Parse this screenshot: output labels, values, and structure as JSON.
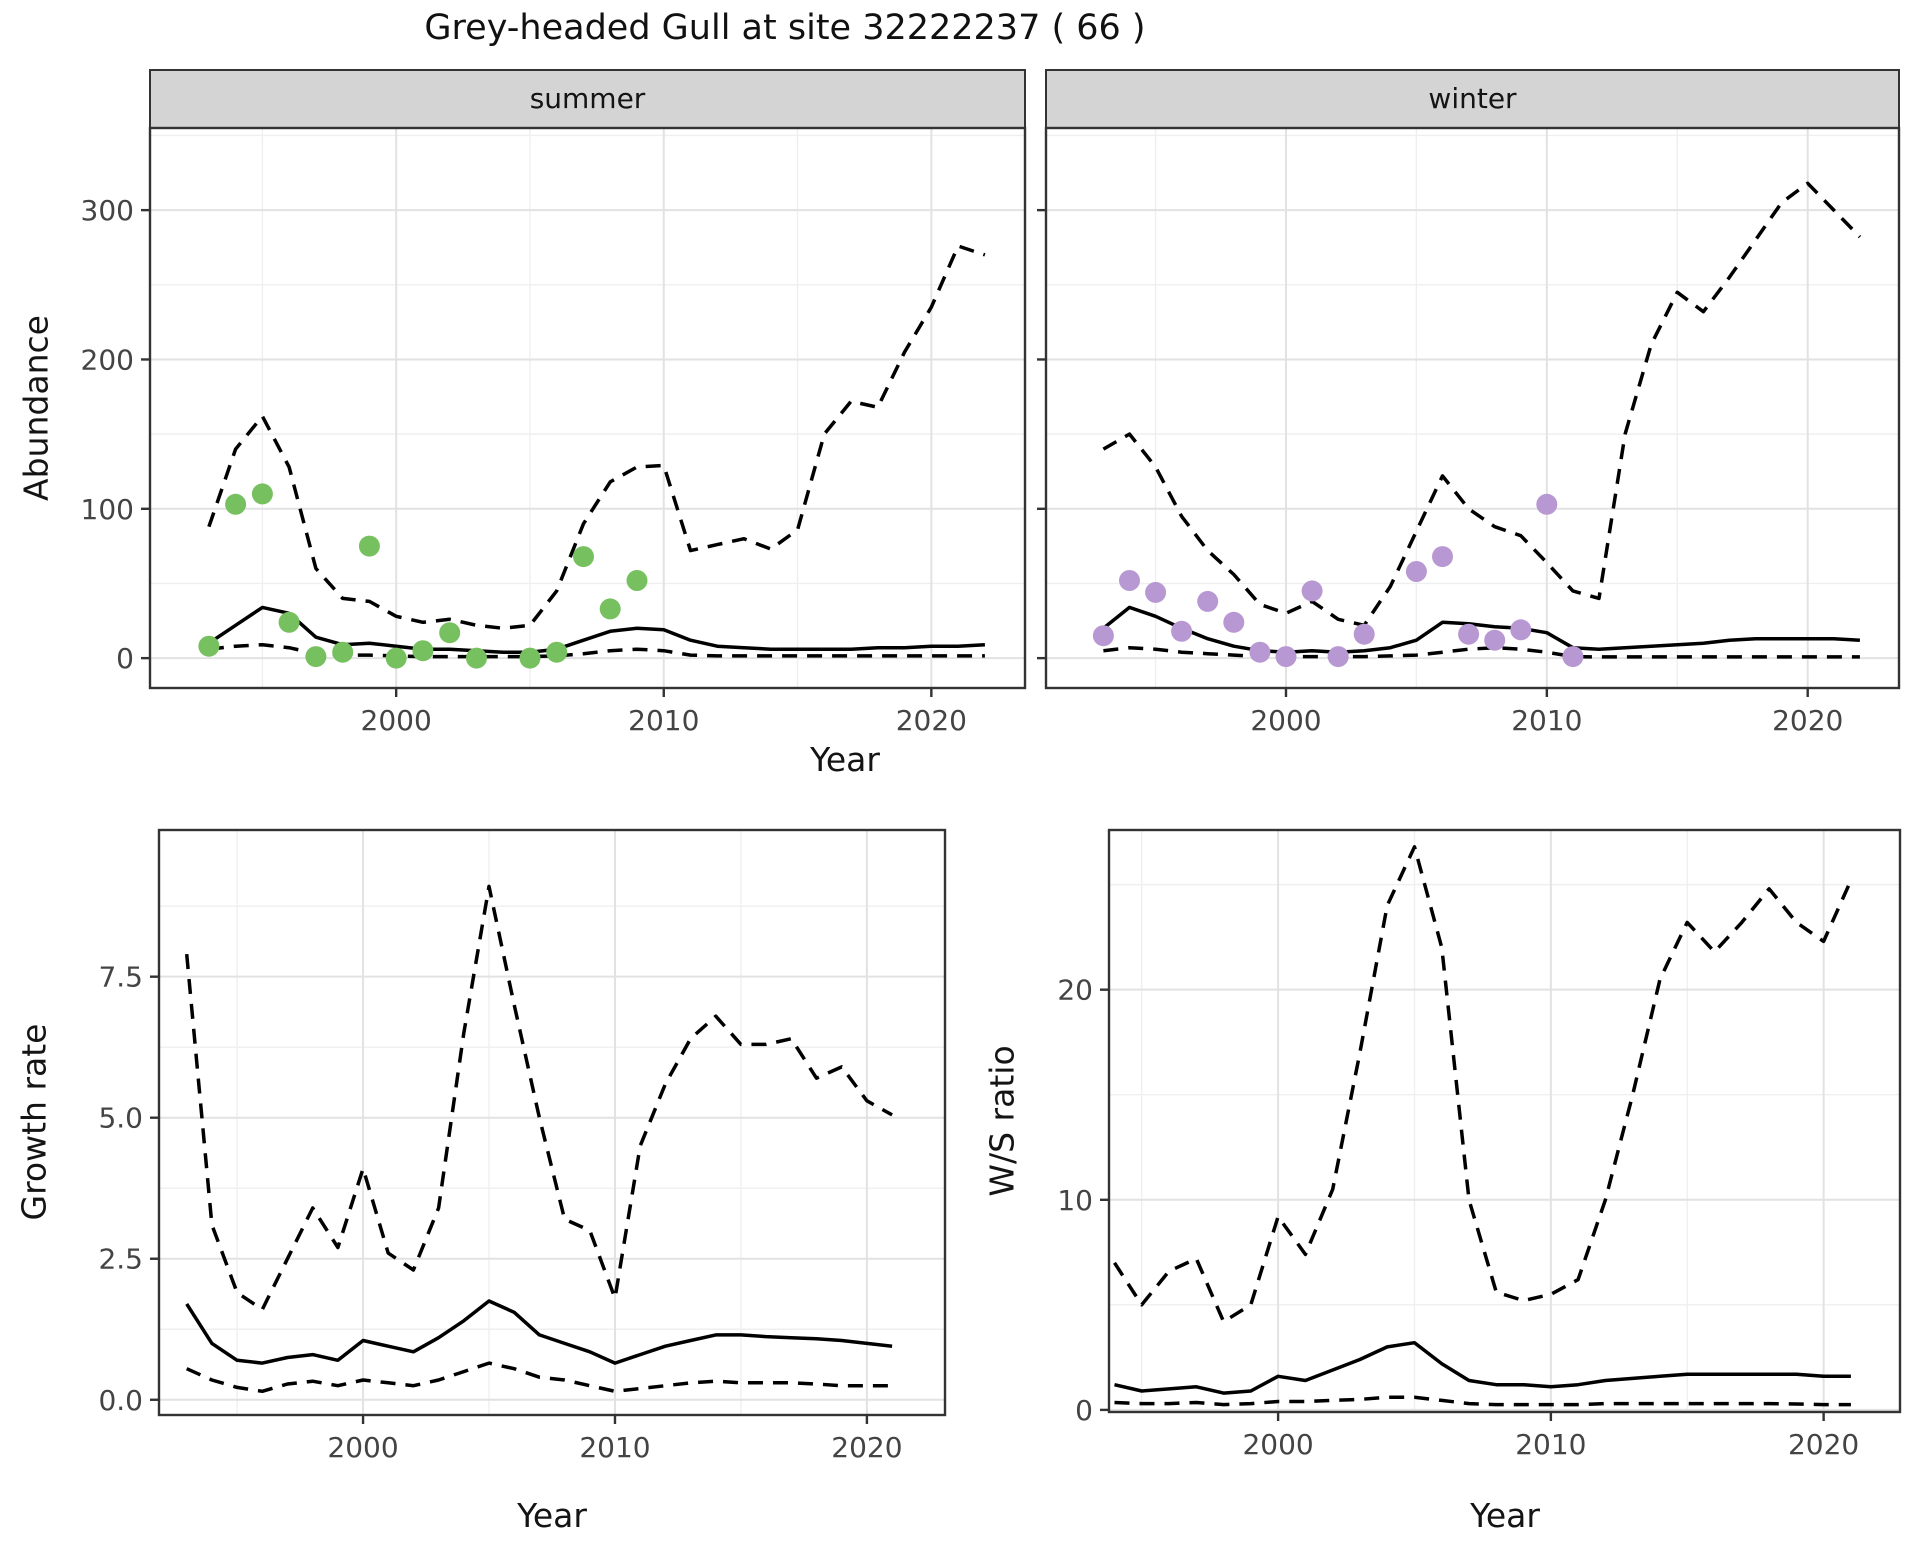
{
  "title": "Grey-headed Gull at site 32222237 ( 66 )",
  "axes": {
    "x_title": "Year",
    "abundance_title": "Abundance",
    "growth_title": "Growth rate",
    "ws_title": "W/S ratio"
  },
  "facets": [
    "summer",
    "winter"
  ],
  "colors": {
    "summer_points": "#77c05f",
    "winter_points": "#b898d2",
    "line": "#000000",
    "grid_major": "#e2e2e2",
    "grid_minor": "#efefef",
    "strip_bg": "#d4d4d4",
    "panel_border": "#333333",
    "axis_text": "#444444"
  },
  "chart_data": [
    {
      "name": "abundance_summer",
      "type": "line",
      "facet": "summer",
      "ylabel": "Abundance",
      "xlabel": "Year",
      "legend_position": "none",
      "grid": true,
      "xlim": [
        1990.8,
        2023.5
      ],
      "ylim": [
        -20,
        355
      ],
      "x_ticks": [
        2000,
        2010,
        2020
      ],
      "x_tick_labels": [
        "2000",
        "2010",
        "2020"
      ],
      "x_minor": [
        1995,
        2005,
        2015
      ],
      "y_ticks": [
        0,
        100,
        200,
        300
      ],
      "y_tick_labels": [
        "0",
        "100",
        "200",
        "300"
      ],
      "y_minor": [
        50,
        150,
        250,
        350
      ],
      "series": {
        "fit": {
          "style": "solid",
          "years": [
            1993,
            1994,
            1995,
            1996,
            1997,
            1998,
            1999,
            2000,
            2001,
            2002,
            2003,
            2004,
            2005,
            2006,
            2007,
            2008,
            2009,
            2010,
            2011,
            2012,
            2013,
            2014,
            2015,
            2016,
            2017,
            2018,
            2019,
            2020,
            2021,
            2022
          ],
          "values": [
            10,
            22,
            34,
            30,
            14,
            9,
            10,
            8,
            6,
            6,
            5,
            4,
            4,
            6,
            12,
            18,
            20,
            19,
            12,
            8,
            7,
            6,
            6,
            6,
            6,
            7,
            7,
            8,
            8,
            9
          ]
        },
        "upper_ci": {
          "style": "dashed",
          "years": [
            1993,
            1994,
            1995,
            1996,
            1997,
            1998,
            1999,
            2000,
            2001,
            2002,
            2003,
            2004,
            2005,
            2006,
            2007,
            2008,
            2009,
            2010,
            2011,
            2012,
            2013,
            2014,
            2015,
            2016,
            2017,
            2018,
            2019,
            2020,
            2021,
            2022
          ],
          "values": [
            88,
            140,
            162,
            128,
            60,
            40,
            38,
            28,
            24,
            26,
            22,
            20,
            22,
            45,
            90,
            118,
            128,
            129,
            72,
            76,
            80,
            73,
            86,
            150,
            172,
            168,
            205,
            235,
            276,
            270
          ]
        },
        "lower_ci": {
          "style": "dashed",
          "years": [
            1993,
            1994,
            1995,
            1996,
            1997,
            1998,
            1999,
            2000,
            2001,
            2002,
            2003,
            2004,
            2005,
            2006,
            2007,
            2008,
            2009,
            2010,
            2011,
            2012,
            2013,
            2014,
            2015,
            2016,
            2017,
            2018,
            2019,
            2020,
            2021,
            2022
          ],
          "values": [
            6,
            8,
            9,
            7,
            3,
            2,
            2,
            1.5,
            1,
            1,
            1,
            1,
            1,
            1.5,
            3,
            5,
            6,
            5,
            2,
            1.5,
            1.5,
            1.5,
            1.5,
            1.5,
            1.5,
            1.5,
            1.5,
            1.5,
            1.5,
            1.5
          ]
        }
      },
      "observations": {
        "color_key": "summer_points",
        "years": [
          1993,
          1994,
          1995,
          1996,
          1997,
          1998,
          1999,
          2000,
          2001,
          2002,
          2003,
          2005,
          2006,
          2007,
          2008,
          2009
        ],
        "values": [
          8,
          103,
          110,
          24,
          1,
          4,
          75,
          0,
          5,
          17,
          0,
          0,
          4,
          68,
          33,
          52
        ]
      }
    },
    {
      "name": "abundance_winter",
      "type": "line",
      "facet": "winter",
      "ylabel": "",
      "xlabel": "Year",
      "legend_position": "none",
      "grid": true,
      "xlim": [
        1990.8,
        2023.5
      ],
      "ylim": [
        -20,
        355
      ],
      "x_ticks": [
        2000,
        2010,
        2020
      ],
      "x_tick_labels": [
        "2000",
        "2010",
        "2020"
      ],
      "x_minor": [
        1995,
        2005,
        2015
      ],
      "y_ticks": [
        0,
        100,
        200,
        300
      ],
      "y_tick_labels": [],
      "y_minor": [
        50,
        150,
        250,
        350
      ],
      "series": {
        "fit": {
          "style": "solid",
          "years": [
            1993,
            1994,
            1995,
            1996,
            1997,
            1998,
            1999,
            2000,
            2001,
            2002,
            2003,
            2004,
            2005,
            2006,
            2007,
            2008,
            2009,
            2010,
            2011,
            2012,
            2013,
            2014,
            2015,
            2016,
            2017,
            2018,
            2019,
            2020,
            2021,
            2022
          ],
          "values": [
            20,
            34,
            28,
            20,
            13,
            8,
            5,
            4,
            5,
            4,
            5,
            7,
            12,
            24,
            23,
            21,
            20,
            17,
            7,
            6,
            7,
            8,
            9,
            10,
            12,
            13,
            13,
            13,
            13,
            12
          ]
        },
        "upper_ci": {
          "style": "dashed",
          "years": [
            1993,
            1994,
            1995,
            1996,
            1997,
            1998,
            1999,
            2000,
            2001,
            2002,
            2003,
            2004,
            2005,
            2006,
            2007,
            2008,
            2009,
            2010,
            2011,
            2012,
            2013,
            2014,
            2015,
            2016,
            2017,
            2018,
            2019,
            2020,
            2021,
            2022
          ],
          "values": [
            140,
            150,
            128,
            95,
            72,
            56,
            36,
            30,
            38,
            26,
            22,
            48,
            85,
            122,
            100,
            88,
            82,
            64,
            45,
            40,
            150,
            210,
            245,
            232,
            255,
            280,
            305,
            318,
            300,
            282
          ]
        },
        "lower_ci": {
          "style": "dashed",
          "years": [
            1993,
            1994,
            1995,
            1996,
            1997,
            1998,
            1999,
            2000,
            2001,
            2002,
            2003,
            2004,
            2005,
            2006,
            2007,
            2008,
            2009,
            2010,
            2011,
            2012,
            2013,
            2014,
            2015,
            2016,
            2017,
            2018,
            2019,
            2020,
            2021,
            2022
          ],
          "values": [
            5,
            7,
            6,
            4,
            3,
            2,
            1,
            1,
            1,
            1,
            1,
            1.5,
            2,
            4,
            6,
            7,
            6,
            4,
            1,
            0.8,
            0.8,
            0.8,
            0.8,
            0.8,
            0.8,
            0.8,
            0.8,
            0.8,
            0.8,
            0.8
          ]
        }
      },
      "observations": {
        "color_key": "winter_points",
        "years": [
          1993,
          1994,
          1995,
          1996,
          1997,
          1998,
          1999,
          2000,
          2001,
          2002,
          2003,
          2005,
          2006,
          2007,
          2008,
          2009,
          2010,
          2011
        ],
        "values": [
          15,
          52,
          44,
          18,
          38,
          24,
          4,
          1,
          45,
          1,
          16,
          58,
          68,
          16,
          12,
          19,
          103,
          1
        ]
      }
    },
    {
      "name": "growth_rate",
      "type": "line",
      "facet": null,
      "ylabel": "Growth rate",
      "xlabel": "Year",
      "legend_position": "none",
      "grid": true,
      "xlim": [
        1991.9,
        2023.1
      ],
      "ylim": [
        -0.27,
        10.1
      ],
      "x_ticks": [
        2000,
        2010,
        2020
      ],
      "x_tick_labels": [
        "2000",
        "2010",
        "2020"
      ],
      "x_minor": [
        1995,
        2005,
        2015
      ],
      "y_ticks": [
        0,
        2.5,
        5,
        7.5
      ],
      "y_tick_labels": [
        "0.0",
        "2.5",
        "5.0",
        "7.5"
      ],
      "y_minor": [
        1.25,
        3.75,
        6.25,
        8.75
      ],
      "series": {
        "fit": {
          "style": "solid",
          "years": [
            1993,
            1994,
            1995,
            1996,
            1997,
            1998,
            1999,
            2000,
            2001,
            2002,
            2003,
            2004,
            2005,
            2006,
            2007,
            2008,
            2009,
            2010,
            2011,
            2012,
            2013,
            2014,
            2015,
            2016,
            2017,
            2018,
            2019,
            2020,
            2021
          ],
          "values": [
            1.7,
            1.0,
            0.7,
            0.65,
            0.75,
            0.8,
            0.7,
            1.05,
            0.95,
            0.85,
            1.1,
            1.4,
            1.75,
            1.55,
            1.15,
            1.0,
            0.85,
            0.65,
            0.8,
            0.95,
            1.05,
            1.15,
            1.15,
            1.12,
            1.1,
            1.08,
            1.05,
            1.0,
            0.95
          ]
        },
        "upper_ci": {
          "style": "dashed",
          "years": [
            1993,
            1994,
            1995,
            1996,
            1997,
            1998,
            1999,
            2000,
            2001,
            2002,
            2003,
            2004,
            2005,
            2006,
            2007,
            2008,
            2009,
            2010,
            2011,
            2012,
            2013,
            2014,
            2015,
            2016,
            2017,
            2018,
            2019,
            2020,
            2021
          ],
          "values": [
            7.9,
            3.1,
            1.9,
            1.6,
            2.5,
            3.4,
            2.7,
            4.1,
            2.6,
            2.3,
            3.4,
            6.5,
            9.1,
            7.0,
            5.0,
            3.2,
            3.0,
            1.8,
            4.5,
            5.6,
            6.4,
            6.8,
            6.3,
            6.3,
            6.4,
            5.7,
            5.9,
            5.3,
            5.05
          ]
        },
        "lower_ci": {
          "style": "dashed",
          "years": [
            1993,
            1994,
            1995,
            1996,
            1997,
            1998,
            1999,
            2000,
            2001,
            2002,
            2003,
            2004,
            2005,
            2006,
            2007,
            2008,
            2009,
            2010,
            2011,
            2012,
            2013,
            2014,
            2015,
            2016,
            2017,
            2018,
            2019,
            2020,
            2021
          ],
          "values": [
            0.55,
            0.35,
            0.22,
            0.15,
            0.28,
            0.33,
            0.25,
            0.35,
            0.3,
            0.25,
            0.35,
            0.5,
            0.65,
            0.55,
            0.4,
            0.35,
            0.25,
            0.15,
            0.2,
            0.25,
            0.3,
            0.33,
            0.3,
            0.3,
            0.3,
            0.28,
            0.25,
            0.25,
            0.25
          ]
        }
      }
    },
    {
      "name": "ws_ratio",
      "type": "line",
      "facet": null,
      "ylabel": "W/S ratio",
      "xlabel": "Year",
      "legend_position": "none",
      "grid": true,
      "xlim": [
        1993.8,
        2022.8
      ],
      "ylim": [
        -0.1,
        27.6
      ],
      "x_ticks": [
        2000,
        2010,
        2020
      ],
      "x_tick_labels": [
        "2000",
        "2010",
        "2020"
      ],
      "x_minor": [
        1995,
        2005,
        2015
      ],
      "y_ticks": [
        0,
        10,
        20
      ],
      "y_tick_labels": [
        "0",
        "10",
        "20"
      ],
      "y_minor": [
        5,
        15,
        25
      ],
      "series": {
        "fit": {
          "style": "solid",
          "years": [
            1994,
            1995,
            1996,
            1997,
            1998,
            1999,
            2000,
            2001,
            2002,
            2003,
            2004,
            2005,
            2006,
            2007,
            2008,
            2009,
            2010,
            2011,
            2012,
            2013,
            2014,
            2015,
            2016,
            2017,
            2018,
            2019,
            2020,
            2021
          ],
          "values": [
            1.2,
            0.9,
            1.0,
            1.1,
            0.8,
            0.9,
            1.6,
            1.4,
            1.9,
            2.4,
            3.0,
            3.2,
            2.2,
            1.4,
            1.2,
            1.2,
            1.1,
            1.2,
            1.4,
            1.5,
            1.6,
            1.7,
            1.7,
            1.7,
            1.7,
            1.7,
            1.6,
            1.6
          ]
        },
        "upper_ci": {
          "style": "dashed",
          "years": [
            1994,
            1995,
            1996,
            1997,
            1998,
            1999,
            2000,
            2001,
            2002,
            2003,
            2004,
            2005,
            2006,
            2007,
            2008,
            2009,
            2010,
            2011,
            2012,
            2013,
            2014,
            2015,
            2016,
            2017,
            2018,
            2019,
            2020,
            2021
          ],
          "values": [
            7.0,
            5.0,
            6.6,
            7.2,
            4.2,
            5.0,
            9.2,
            7.4,
            10.5,
            17,
            24,
            26.8,
            22,
            10,
            5.6,
            5.2,
            5.5,
            6.2,
            10,
            15,
            20.5,
            23.2,
            21.8,
            23.2,
            24.8,
            23.2,
            22.3,
            25.2
          ]
        },
        "lower_ci": {
          "style": "dashed",
          "years": [
            1994,
            1995,
            1996,
            1997,
            1998,
            1999,
            2000,
            2001,
            2002,
            2003,
            2004,
            2005,
            2006,
            2007,
            2008,
            2009,
            2010,
            2011,
            2012,
            2013,
            2014,
            2015,
            2016,
            2017,
            2018,
            2019,
            2020,
            2021
          ],
          "values": [
            0.35,
            0.3,
            0.3,
            0.35,
            0.25,
            0.3,
            0.4,
            0.4,
            0.45,
            0.5,
            0.6,
            0.6,
            0.45,
            0.3,
            0.25,
            0.25,
            0.25,
            0.25,
            0.3,
            0.3,
            0.3,
            0.3,
            0.3,
            0.3,
            0.3,
            0.28,
            0.25,
            0.25
          ]
        }
      }
    }
  ]
}
